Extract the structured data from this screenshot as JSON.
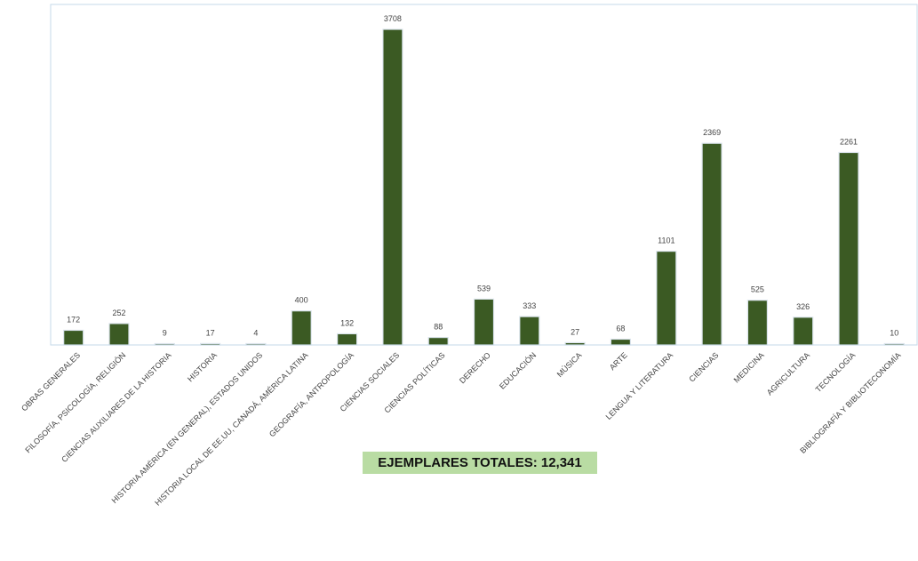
{
  "chart_data": {
    "type": "bar",
    "categories": [
      "OBRAS GENERALES",
      "FILOSOFÍA, PSICOLOGÍA, RELIGIÓN",
      "CIENCIAS AUXILIARES DE LA HISTORIA",
      "HISTORIA",
      "HISTORIA AMÉRICA (EN GENERAL), ESTADOS UNIDOS",
      "HISTORIA LOCAL DE EE.UU, CANADÁ, AMÉRICA LATINA",
      "GEOGRAFÍA, ANTROPOLOGÍA",
      "CIENCIAS SOCIALES",
      "CIENCIAS POLÍTICAS",
      "DERECHO",
      "EDUCACIÓN",
      "MÚSICA",
      "ARTE",
      "LENGUA Y LITERATURA",
      "CIENCIAS",
      "MEDICINA",
      "AGRICULTURA",
      "TECNOLOGÍA",
      "BIBLIOGRAFÍA Y BIBLIOTECONOMÍA"
    ],
    "values": [
      172,
      252,
      9,
      17,
      4,
      400,
      132,
      3708,
      88,
      539,
      333,
      27,
      68,
      1101,
      2369,
      525,
      326,
      2261,
      10
    ],
    "data_labels": [
      "172",
      "252",
      "9",
      "17",
      "4",
      "400",
      "132",
      "3708",
      "88",
      "539",
      "333",
      "27",
      "68",
      "1101",
      "2369",
      "525",
      "326",
      "2261",
      "10"
    ],
    "title": "",
    "xlabel": "",
    "ylabel": "",
    "ylim": [
      0,
      4000
    ],
    "grid": false,
    "legend": "none",
    "colors": {
      "bar": "#3b5a23",
      "badge_background": "#b9dca3",
      "frame": "#c5d8ea"
    }
  },
  "annotation": {
    "total_label": "EJEMPLARES TOTALES: 12,341"
  }
}
